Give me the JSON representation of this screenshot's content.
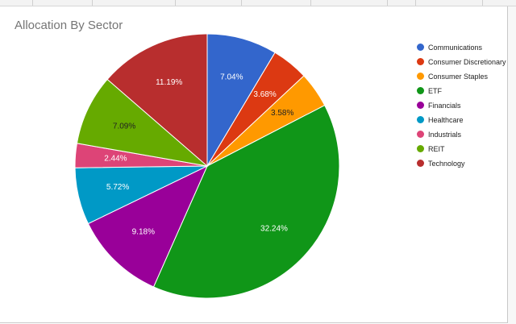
{
  "chart_data": {
    "type": "pie",
    "title": "Allocation By Sector",
    "legend_position": "right",
    "slices": [
      {
        "name": "Communications",
        "value": 7.04,
        "label": "7.04%",
        "color": "#3366cc",
        "label_color": "#ffffff"
      },
      {
        "name": "Consumer Discretionary",
        "value": 3.68,
        "label": "3.68%",
        "color": "#dc3912",
        "label_color": "#ffffff"
      },
      {
        "name": "Consumer Staples",
        "value": 3.58,
        "label": "3.58%",
        "color": "#ff9900",
        "label_color": "#222222"
      },
      {
        "name": "ETF",
        "value": 32.24,
        "label": "32.24%",
        "color": "#109618",
        "label_color": "#ffffff"
      },
      {
        "name": "Financials",
        "value": 9.18,
        "label": "9.18%",
        "color": "#990099",
        "label_color": "#ffffff"
      },
      {
        "name": "Healthcare",
        "value": 5.72,
        "label": "5.72%",
        "color": "#0099c6",
        "label_color": "#ffffff"
      },
      {
        "name": "Industrials",
        "value": 2.44,
        "label": "2.44%",
        "color": "#dd4477",
        "label_color": "#ffffff"
      },
      {
        "name": "REIT",
        "value": 7.09,
        "label": "7.09%",
        "color": "#66aa00",
        "label_color": "#222222"
      },
      {
        "name": "Technology",
        "value": 11.19,
        "label": "11.19%",
        "color": "#b82e2e",
        "label_color": "#ffffff"
      }
    ]
  }
}
